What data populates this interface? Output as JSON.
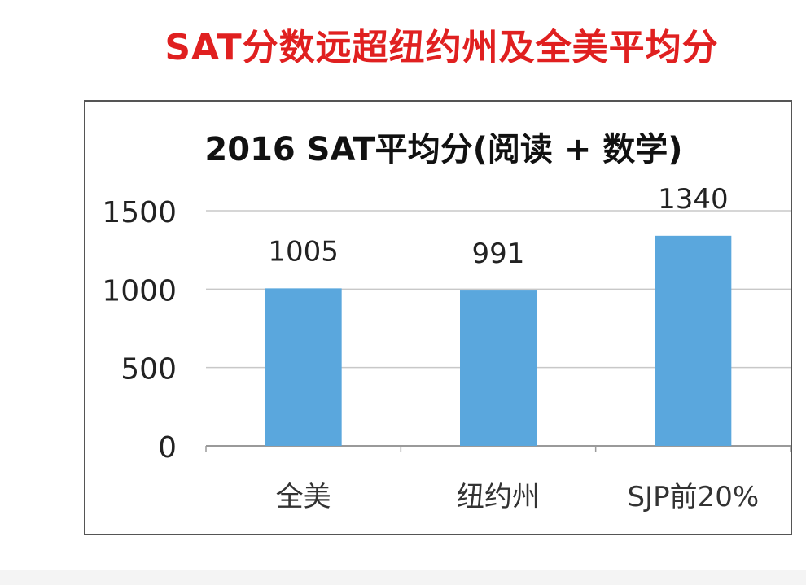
{
  "headline": "SAT分数远超纽约州及全美平均分",
  "chart_data": {
    "type": "bar",
    "title": "2016 SAT平均分(阅读 + 数学)",
    "categories": [
      "全美",
      "纽约州",
      "SJP前20%"
    ],
    "values": [
      1005,
      991,
      1340
    ],
    "data_labels": [
      "1005",
      "991",
      "1340"
    ],
    "ylim": [
      0,
      1500
    ],
    "yticks": [
      0,
      500,
      1000,
      1500
    ],
    "grid": true,
    "bar_color": "#5aa7dd",
    "gridline_color": "#c8c8c8"
  }
}
